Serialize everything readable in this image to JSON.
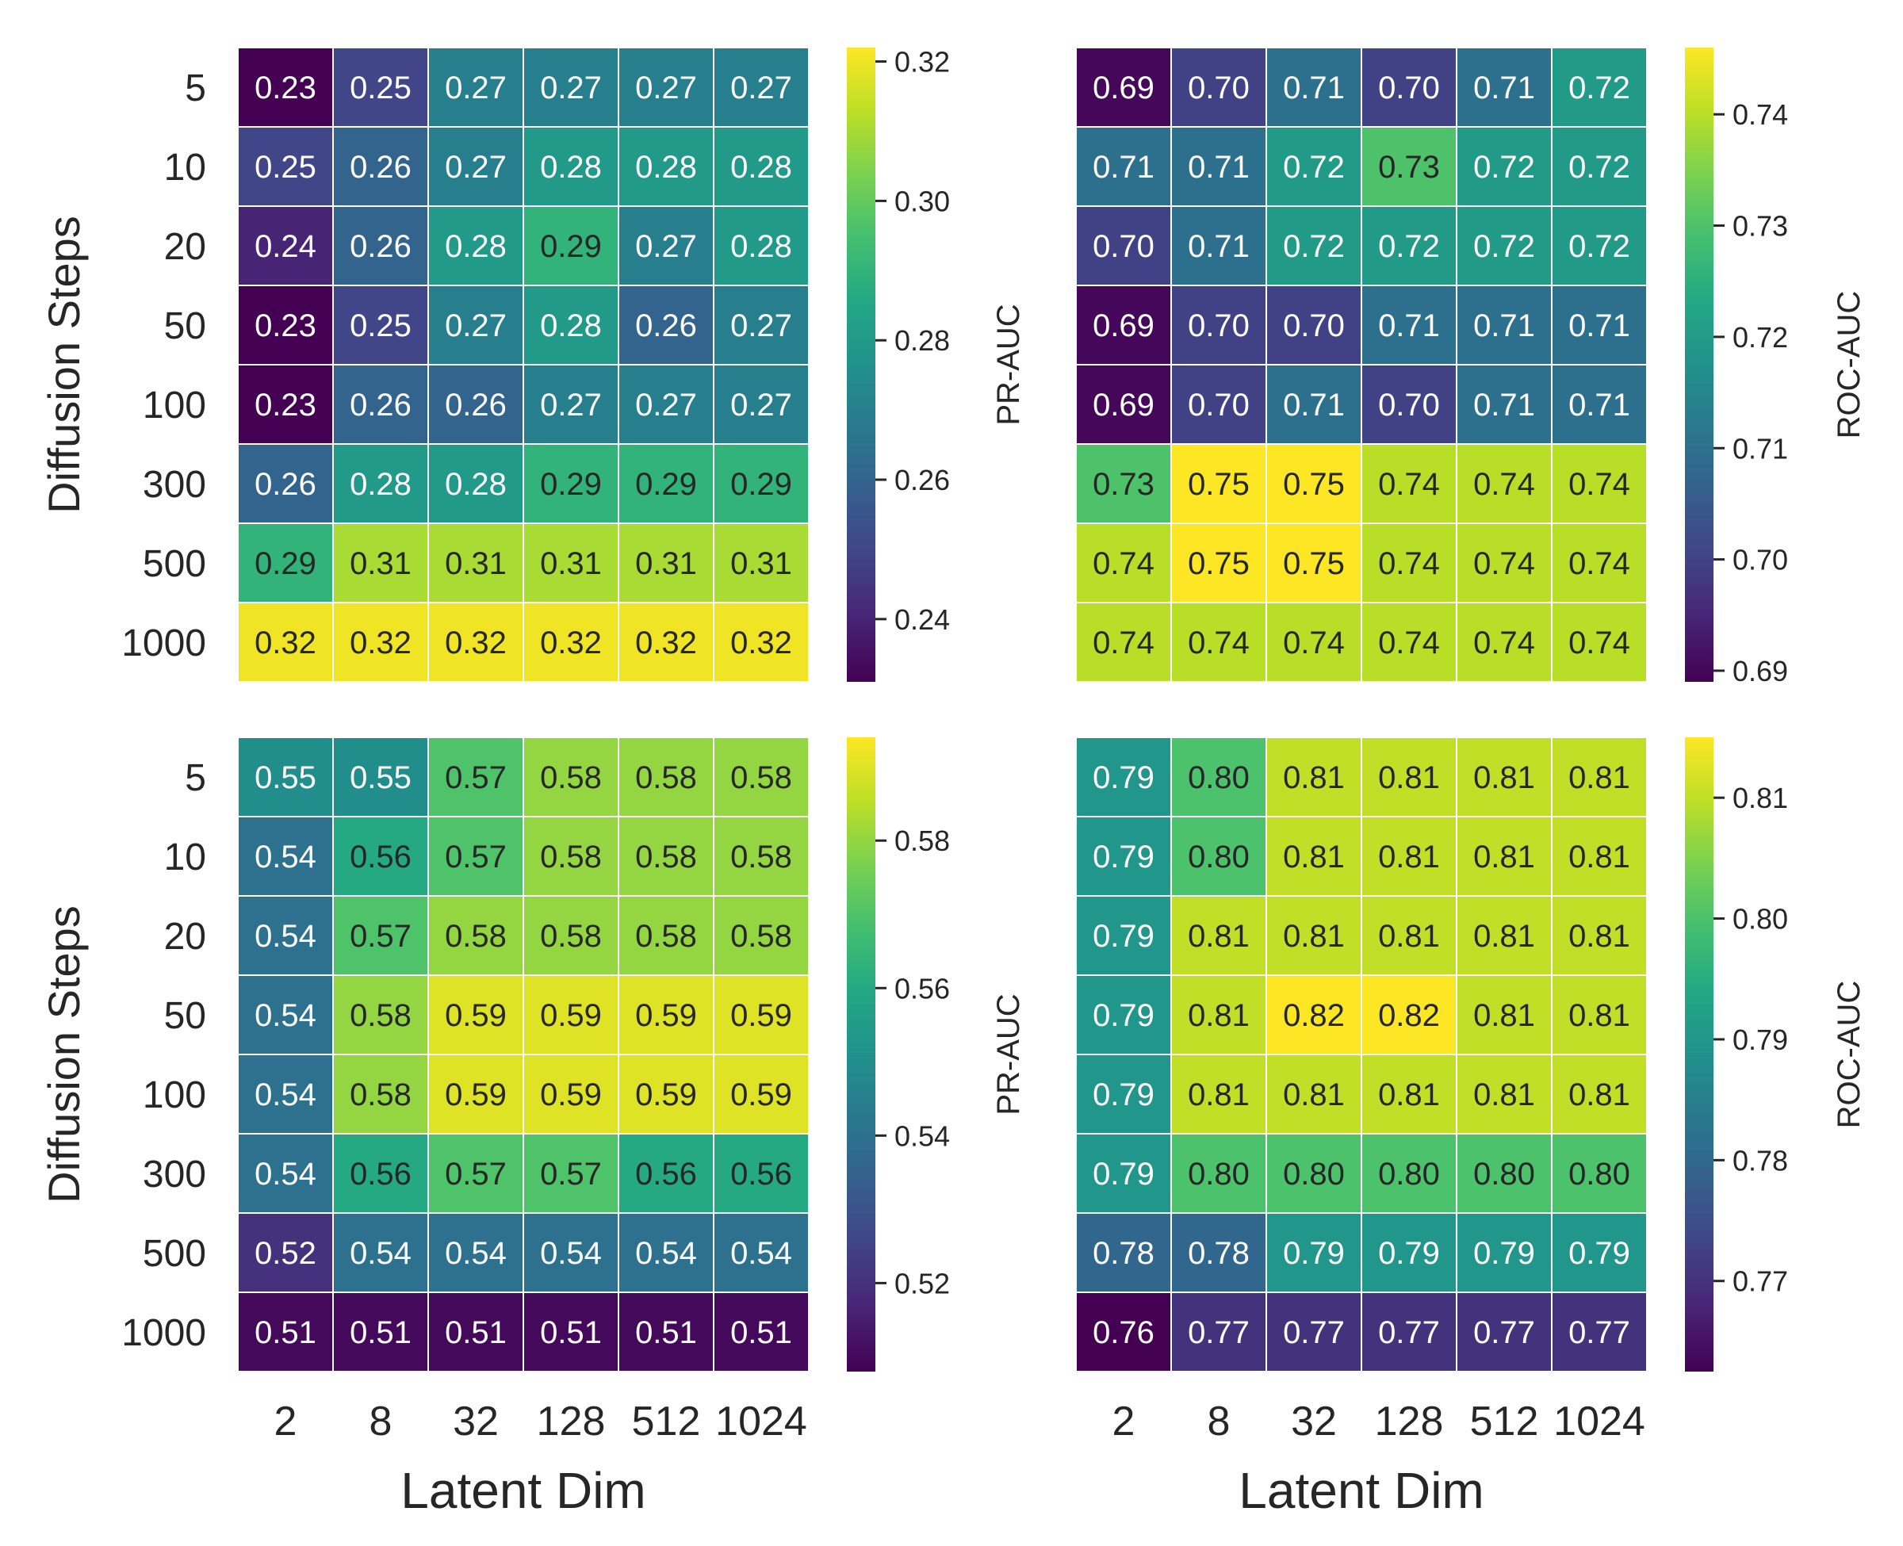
{
  "chart_data": [
    {
      "type": "heatmap",
      "position": "top-left",
      "rows": [
        "5",
        "10",
        "20",
        "50",
        "100",
        "300",
        "500",
        "1000"
      ],
      "columns": [
        "2",
        "8",
        "32",
        "128",
        "512",
        "1024"
      ],
      "values": [
        [
          0.23,
          0.25,
          0.27,
          0.27,
          0.27,
          0.27
        ],
        [
          0.25,
          0.26,
          0.27,
          0.28,
          0.28,
          0.28
        ],
        [
          0.24,
          0.26,
          0.28,
          0.29,
          0.27,
          0.28
        ],
        [
          0.23,
          0.25,
          0.27,
          0.28,
          0.26,
          0.27
        ],
        [
          0.23,
          0.26,
          0.26,
          0.27,
          0.27,
          0.27
        ],
        [
          0.26,
          0.28,
          0.28,
          0.29,
          0.29,
          0.29
        ],
        [
          0.29,
          0.31,
          0.31,
          0.31,
          0.31,
          0.31
        ],
        [
          0.32,
          0.32,
          0.32,
          0.32,
          0.32,
          0.32
        ]
      ],
      "ylabel": "Diffusion Steps",
      "xlabel": "",
      "colorbar": {
        "label": "PR-AUC",
        "range": [
          0.231,
          0.322
        ],
        "ticks": [
          "0.24",
          "0.26",
          "0.28",
          "0.30",
          "0.32"
        ]
      }
    },
    {
      "type": "heatmap",
      "position": "top-right",
      "rows": [
        "5",
        "10",
        "20",
        "50",
        "100",
        "300",
        "500",
        "1000"
      ],
      "columns": [
        "2",
        "8",
        "32",
        "128",
        "512",
        "1024"
      ],
      "values": [
        [
          0.69,
          0.7,
          0.71,
          0.7,
          0.71,
          0.72
        ],
        [
          0.71,
          0.71,
          0.72,
          0.73,
          0.72,
          0.72
        ],
        [
          0.7,
          0.71,
          0.72,
          0.72,
          0.72,
          0.72
        ],
        [
          0.69,
          0.7,
          0.7,
          0.71,
          0.71,
          0.71
        ],
        [
          0.69,
          0.7,
          0.71,
          0.7,
          0.71,
          0.71
        ],
        [
          0.73,
          0.75,
          0.75,
          0.74,
          0.74,
          0.74
        ],
        [
          0.74,
          0.75,
          0.75,
          0.74,
          0.74,
          0.74
        ],
        [
          0.74,
          0.74,
          0.74,
          0.74,
          0.74,
          0.74
        ]
      ],
      "ylabel": "",
      "xlabel": "",
      "colorbar": {
        "label": "ROC-AUC",
        "range": [
          0.689,
          0.746
        ],
        "ticks": [
          "0.69",
          "0.70",
          "0.71",
          "0.72",
          "0.73",
          "0.74"
        ]
      }
    },
    {
      "type": "heatmap",
      "position": "bottom-left",
      "rows": [
        "5",
        "10",
        "20",
        "50",
        "100",
        "300",
        "500",
        "1000"
      ],
      "columns": [
        "2",
        "8",
        "32",
        "128",
        "512",
        "1024"
      ],
      "values": [
        [
          0.55,
          0.55,
          0.57,
          0.58,
          0.58,
          0.58
        ],
        [
          0.54,
          0.56,
          0.57,
          0.58,
          0.58,
          0.58
        ],
        [
          0.54,
          0.57,
          0.58,
          0.58,
          0.58,
          0.58
        ],
        [
          0.54,
          0.58,
          0.59,
          0.59,
          0.59,
          0.59
        ],
        [
          0.54,
          0.58,
          0.59,
          0.59,
          0.59,
          0.59
        ],
        [
          0.54,
          0.56,
          0.57,
          0.57,
          0.56,
          0.56
        ],
        [
          0.52,
          0.54,
          0.54,
          0.54,
          0.54,
          0.54
        ],
        [
          0.51,
          0.51,
          0.51,
          0.51,
          0.51,
          0.51
        ]
      ],
      "ylabel": "Diffusion Steps",
      "xlabel": "Latent Dim",
      "colorbar": {
        "label": "PR-AUC",
        "range": [
          0.508,
          0.594
        ],
        "ticks": [
          "0.52",
          "0.54",
          "0.56",
          "0.58"
        ]
      }
    },
    {
      "type": "heatmap",
      "position": "bottom-right",
      "rows": [
        "5",
        "10",
        "20",
        "50",
        "100",
        "300",
        "500",
        "1000"
      ],
      "columns": [
        "2",
        "8",
        "32",
        "128",
        "512",
        "1024"
      ],
      "values": [
        [
          0.79,
          0.8,
          0.81,
          0.81,
          0.81,
          0.81
        ],
        [
          0.79,
          0.8,
          0.81,
          0.81,
          0.81,
          0.81
        ],
        [
          0.79,
          0.81,
          0.81,
          0.81,
          0.81,
          0.81
        ],
        [
          0.79,
          0.81,
          0.82,
          0.82,
          0.81,
          0.81
        ],
        [
          0.79,
          0.81,
          0.81,
          0.81,
          0.81,
          0.81
        ],
        [
          0.79,
          0.8,
          0.8,
          0.8,
          0.8,
          0.8
        ],
        [
          0.78,
          0.78,
          0.79,
          0.79,
          0.79,
          0.79
        ],
        [
          0.76,
          0.77,
          0.77,
          0.77,
          0.77,
          0.77
        ]
      ],
      "ylabel": "",
      "xlabel": "Latent Dim",
      "colorbar": {
        "label": "ROC-AUC",
        "range": [
          0.7625,
          0.815
        ],
        "ticks": [
          "0.77",
          "0.78",
          "0.79",
          "0.80",
          "0.81"
        ]
      }
    }
  ]
}
